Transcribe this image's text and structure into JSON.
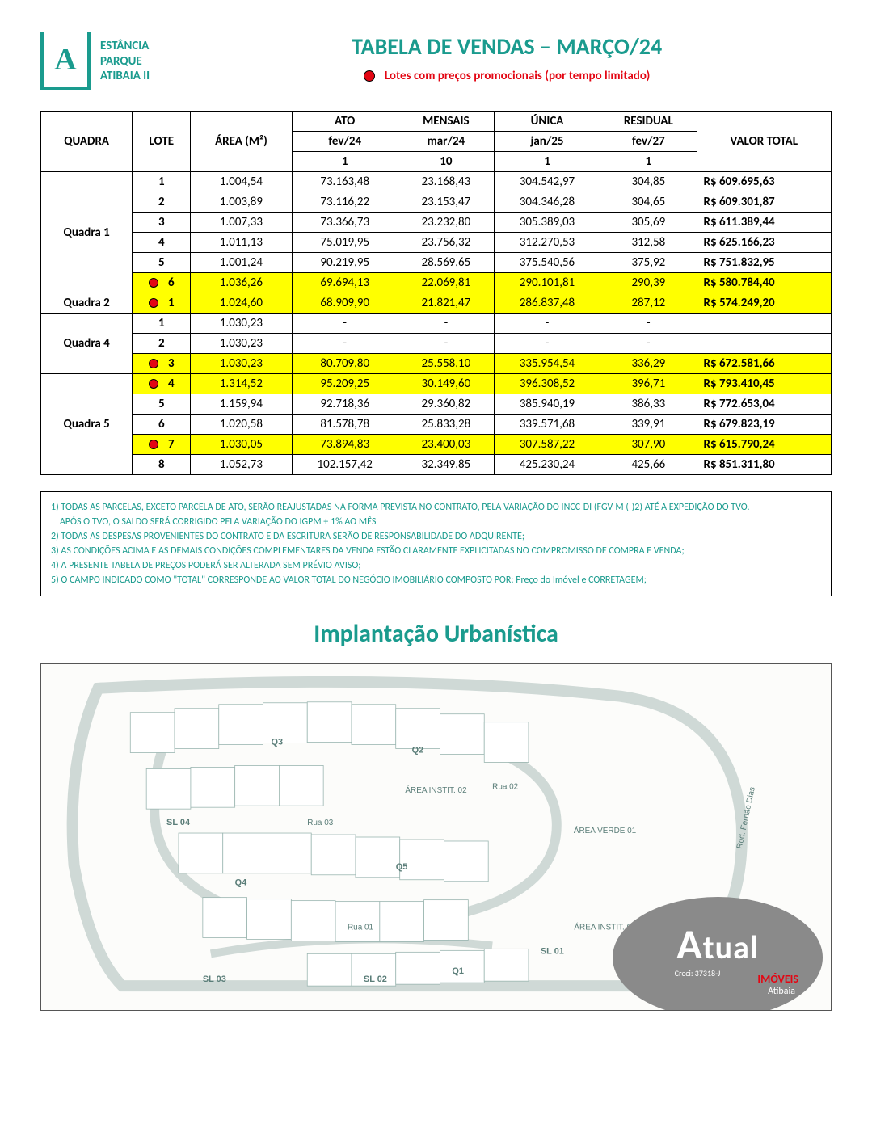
{
  "logo": {
    "letter": "A",
    "line1": "ESTÂNCIA",
    "line2": "PARQUE",
    "line3": "ATIBAIA II"
  },
  "title": "TABELA DE VENDAS – MARÇO/24",
  "promo_label": "Lotes com preços promocionais (por tempo limitado)",
  "columns": {
    "quadra": "QUADRA",
    "lote": "LOTE",
    "area": "ÁREA (M²)",
    "ato": "ATO",
    "mensais": "MENSAIS",
    "unica": "ÚNICA",
    "residual": "RESIDUAL",
    "total": "VALOR TOTAL",
    "ato_sub": "fev/24",
    "mensais_sub": "mar/24",
    "unica_sub": "jan/25",
    "residual_sub": "fev/27",
    "ato_n": "1",
    "mensais_n": "10",
    "unica_n": "1",
    "residual_n": "1"
  },
  "groups": [
    {
      "name": "Quadra 1",
      "rows": [
        {
          "promo": false,
          "lote": "1",
          "area": "1.004,54",
          "ato": "73.163,48",
          "mensais": "23.168,43",
          "unica": "304.542,97",
          "residual": "304,85",
          "total": "R$  609.695,63"
        },
        {
          "promo": false,
          "lote": "2",
          "area": "1.003,89",
          "ato": "73.116,22",
          "mensais": "23.153,47",
          "unica": "304.346,28",
          "residual": "304,65",
          "total": "R$  609.301,87"
        },
        {
          "promo": false,
          "lote": "3",
          "area": "1.007,33",
          "ato": "73.366,73",
          "mensais": "23.232,80",
          "unica": "305.389,03",
          "residual": "305,69",
          "total": "R$  611.389,44"
        },
        {
          "promo": false,
          "lote": "4",
          "area": "1.011,13",
          "ato": "75.019,95",
          "mensais": "23.756,32",
          "unica": "312.270,53",
          "residual": "312,58",
          "total": "R$  625.166,23"
        },
        {
          "promo": false,
          "lote": "5",
          "area": "1.001,24",
          "ato": "90.219,95",
          "mensais": "28.569,65",
          "unica": "375.540,56",
          "residual": "375,92",
          "total": "R$  751.832,95"
        },
        {
          "promo": true,
          "lote": "6",
          "area": "1.036,26",
          "ato": "69.694,13",
          "mensais": "22.069,81",
          "unica": "290.101,81",
          "residual": "290,39",
          "total": "R$  580.784,40"
        }
      ]
    },
    {
      "name": "Quadra 2",
      "rows": [
        {
          "promo": true,
          "lote": "1",
          "area": "1.024,60",
          "ato": "68.909,90",
          "mensais": "21.821,47",
          "unica": "286.837,48",
          "residual": "287,12",
          "total": "R$  574.249,20"
        }
      ]
    },
    {
      "name": "Quadra 4",
      "rows": [
        {
          "promo": false,
          "lote": "1",
          "area": "1.030,23",
          "ato": "-",
          "mensais": "-",
          "unica": "-",
          "residual": "-",
          "total": ""
        },
        {
          "promo": false,
          "lote": "2",
          "area": "1.030,23",
          "ato": "-",
          "mensais": "-",
          "unica": "-",
          "residual": "-",
          "total": ""
        },
        {
          "promo": true,
          "lote": "3",
          "area": "1.030,23",
          "ato": "80.709,80",
          "mensais": "25.558,10",
          "unica": "335.954,54",
          "residual": "336,29",
          "total": "R$  672.581,66"
        }
      ]
    },
    {
      "name": "Quadra 5",
      "rows": [
        {
          "promo": true,
          "lote": "4",
          "area": "1.314,52",
          "ato": "95.209,25",
          "mensais": "30.149,60",
          "unica": "396.308,52",
          "residual": "396,71",
          "total": "R$  793.410,45"
        },
        {
          "promo": false,
          "lote": "5",
          "area": "1.159,94",
          "ato": "92.718,36",
          "mensais": "29.360,82",
          "unica": "385.940,19",
          "residual": "386,33",
          "total": "R$  772.653,04"
        },
        {
          "promo": false,
          "lote": "6",
          "area": "1.020,58",
          "ato": "81.578,78",
          "mensais": "25.833,28",
          "unica": "339.571,68",
          "residual": "339,91",
          "total": "R$  679.823,19"
        },
        {
          "promo": true,
          "lote": "7",
          "area": "1.030,05",
          "ato": "73.894,83",
          "mensais": "23.400,03",
          "unica": "307.587,22",
          "residual": "307,90",
          "total": "R$  615.790,24"
        },
        {
          "promo": false,
          "lote": "8",
          "area": "1.052,73",
          "ato": "102.157,42",
          "mensais": "32.349,85",
          "unica": "425.230,24",
          "residual": "425,66",
          "total": "R$  851.311,80"
        }
      ]
    }
  ],
  "notes": [
    "1) TODAS AS PARCELAS, EXCETO PARCELA DE ATO, SERÃO REAJUSTADAS NA FORMA PREVISTA NO CONTRATO, PELA VARIAÇÃO DO INCC-DI (FGV-M (-)2) ATÉ A EXPEDIÇÃO DO TVO.",
    "    APÓS O TVO, O SALDO SERÁ CORRIGIDO PELA VARIAÇÃO DO IGPM + 1% AO MÊS",
    "2) TODAS AS DESPESAS PROVENIENTES DO CONTRATO E DA ESCRITURA SERÃO DE RESPONSABILIDADE DO ADQUIRENTE;",
    "3) AS CONDIÇÕES ACIMA E AS DEMAIS CONDIÇÕES COMPLEMENTARES DA VENDA ESTÃO CLARAMENTE EXPLICITADAS NO COMPROMISSO DE COMPRA E VENDA;",
    "4) A PRESENTE TABELA DE PREÇOS PODERÁ SER ALTERADA SEM PRÉVIO AVISO;",
    "5) O CAMPO INDICADO COMO \"TOTAL\" CORRESPONDE AO VALOR TOTAL DO NEGÓCIO IMOBILIÁRIO COMPOSTO POR: Preço do Imóvel e CORRETAGEM;"
  ],
  "section_title": "Implantação Urbanística",
  "plan_labels": {
    "q1": "Q1",
    "q2": "Q2",
    "q3": "Q3",
    "q4": "Q4",
    "q5": "Q5",
    "sl01": "SL 01",
    "sl02": "SL 02",
    "sl03": "SL 03",
    "sl04": "SL 04",
    "verde": "ÁREA VERDE 01",
    "instit1": "ÁREA INSTIT. 01",
    "instit2": "ÁREA INSTIT. 02",
    "rua01": "Rua 01",
    "rua02": "Rua 02",
    "rua03": "Rua 03",
    "rod": "Rod. Fernão Dias"
  },
  "badge": {
    "brand": "tual",
    "brand_a": "A",
    "creci": "Creci: 37318-J",
    "sub": "IMÓVEIS",
    "city": "Atibaia"
  },
  "colors": {
    "teal": "#1a9b8e",
    "red": "#e30613",
    "yellow": "#ffff00",
    "grey": "#8a8a8a"
  }
}
